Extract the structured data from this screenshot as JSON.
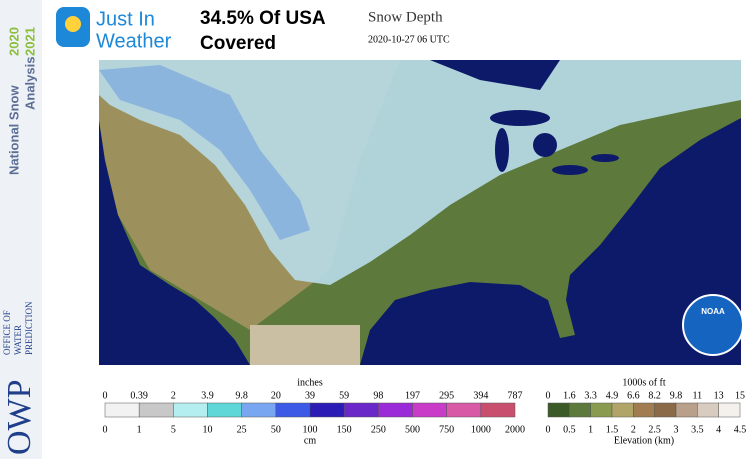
{
  "logo": {
    "line1": "Just In",
    "line2": "Weather"
  },
  "headline": [
    "34.5% Of USA",
    "Covered"
  ],
  "product": "Snow Depth",
  "valid_time": "2020-10-27 06 UTC",
  "sidebar": {
    "title": [
      "National Snow",
      "Analysis"
    ],
    "years": [
      "2020",
      "2021"
    ],
    "owp": "OWP",
    "office": [
      "OFFICE OF",
      "WATER",
      "PREDICTION"
    ]
  },
  "noaa": "NOAA",
  "snow_legend": {
    "top_unit": "inches",
    "top_labels": [
      "0",
      "0.39",
      "2",
      "3.9",
      "9.8",
      "20",
      "39",
      "59",
      "98",
      "197",
      "295",
      "394",
      "787"
    ],
    "bottom_labels": [
      "0",
      "1",
      "5",
      "10",
      "25",
      "50",
      "100",
      "150",
      "250",
      "500",
      "750",
      "1000",
      "2000"
    ],
    "bottom_unit": "cm"
  },
  "elevation_legend": {
    "top_unit": "1000s of ft",
    "top_labels": [
      "0",
      "1.6",
      "3.3",
      "4.9",
      "6.6",
      "8.2",
      "9.8",
      "11",
      "13",
      "15"
    ],
    "bottom_labels": [
      "0",
      "0.5",
      "1",
      "1.5",
      "2",
      "2.5",
      "3",
      "3.5",
      "4",
      "4.5"
    ],
    "bottom_unit": "Elevation (km)"
  }
}
